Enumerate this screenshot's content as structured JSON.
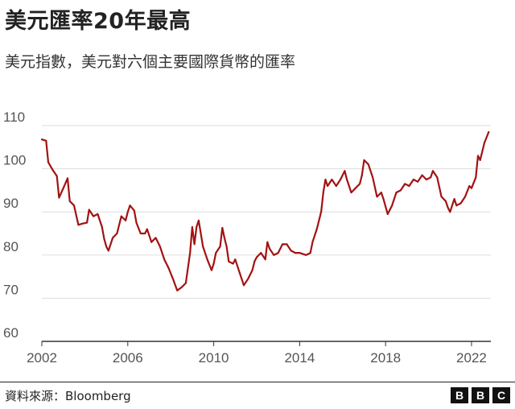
{
  "header": {
    "title": "美元匯率20年最高",
    "subtitle": "美元指數，美元對六個主要國際貨幣的匯率"
  },
  "footer": {
    "source": "資料來源：Bloomberg",
    "logo_letters": [
      "B",
      "B",
      "C"
    ]
  },
  "colors": {
    "line": "#a21212",
    "grid": "#dddddd",
    "axis": "#333333",
    "text": "#555555"
  },
  "chart_data": {
    "type": "line",
    "title": "美元匯率20年最高",
    "subtitle": "美元指數，美元對六個主要國際貨幣的匯率",
    "xlabel": "",
    "ylabel": "",
    "ylim": [
      60,
      110
    ],
    "xlim": [
      2002,
      2022.9
    ],
    "yticks": [
      60,
      70,
      80,
      90,
      100,
      110
    ],
    "xticks": [
      2002,
      2006,
      2010,
      2014,
      2018,
      2022
    ],
    "grid": true,
    "legend": "none",
    "series": [
      {
        "values": [
          [
            2002.0,
            106.8
          ],
          [
            2002.2,
            106.5
          ],
          [
            2002.3,
            101.5
          ],
          [
            2002.5,
            99.8
          ],
          [
            2002.7,
            98.3
          ],
          [
            2002.8,
            93.3
          ],
          [
            2003.0,
            95.5
          ],
          [
            2003.2,
            97.8
          ],
          [
            2003.3,
            92.5
          ],
          [
            2003.5,
            91.5
          ],
          [
            2003.7,
            87.0
          ],
          [
            2003.9,
            87.3
          ],
          [
            2004.1,
            87.5
          ],
          [
            2004.2,
            90.5
          ],
          [
            2004.4,
            89.0
          ],
          [
            2004.6,
            89.5
          ],
          [
            2004.8,
            86.5
          ],
          [
            2004.9,
            83.8
          ],
          [
            2005.0,
            82.0
          ],
          [
            2005.1,
            81.0
          ],
          [
            2005.3,
            84.0
          ],
          [
            2005.5,
            85.0
          ],
          [
            2005.7,
            89.0
          ],
          [
            2005.9,
            88.0
          ],
          [
            2006.0,
            90.0
          ],
          [
            2006.1,
            91.5
          ],
          [
            2006.3,
            90.3
          ],
          [
            2006.4,
            87.5
          ],
          [
            2006.6,
            85.0
          ],
          [
            2006.8,
            85.0
          ],
          [
            2006.9,
            86.0
          ],
          [
            2007.1,
            83.0
          ],
          [
            2007.3,
            84.0
          ],
          [
            2007.5,
            82.0
          ],
          [
            2007.7,
            79.0
          ],
          [
            2007.9,
            77.0
          ],
          [
            2008.1,
            74.5
          ],
          [
            2008.3,
            71.8
          ],
          [
            2008.5,
            72.5
          ],
          [
            2008.7,
            73.5
          ],
          [
            2008.9,
            80.5
          ],
          [
            2009.0,
            86.5
          ],
          [
            2009.1,
            82.5
          ],
          [
            2009.2,
            86.5
          ],
          [
            2009.3,
            88.0
          ],
          [
            2009.5,
            82.0
          ],
          [
            2009.7,
            79.0
          ],
          [
            2009.9,
            76.5
          ],
          [
            2010.0,
            78.0
          ],
          [
            2010.1,
            80.5
          ],
          [
            2010.3,
            82.0
          ],
          [
            2010.4,
            86.3
          ],
          [
            2010.5,
            84.0
          ],
          [
            2010.6,
            82.0
          ],
          [
            2010.7,
            78.5
          ],
          [
            2010.9,
            78.0
          ],
          [
            2011.0,
            79.0
          ],
          [
            2011.2,
            76.0
          ],
          [
            2011.4,
            73.0
          ],
          [
            2011.6,
            74.5
          ],
          [
            2011.8,
            76.5
          ],
          [
            2011.9,
            78.5
          ],
          [
            2012.0,
            79.5
          ],
          [
            2012.2,
            80.5
          ],
          [
            2012.4,
            79.0
          ],
          [
            2012.5,
            83.0
          ],
          [
            2012.6,
            81.5
          ],
          [
            2012.8,
            80.0
          ],
          [
            2013.0,
            80.5
          ],
          [
            2013.2,
            82.5
          ],
          [
            2013.4,
            82.5
          ],
          [
            2013.6,
            81.0
          ],
          [
            2013.8,
            80.5
          ],
          [
            2014.0,
            80.5
          ],
          [
            2014.3,
            80.0
          ],
          [
            2014.5,
            80.5
          ],
          [
            2014.6,
            83.0
          ],
          [
            2014.8,
            86.0
          ],
          [
            2015.0,
            90.0
          ],
          [
            2015.1,
            94.5
          ],
          [
            2015.2,
            97.5
          ],
          [
            2015.3,
            96.0
          ],
          [
            2015.5,
            97.5
          ],
          [
            2015.7,
            96.0
          ],
          [
            2015.9,
            97.5
          ],
          [
            2016.1,
            99.5
          ],
          [
            2016.2,
            97.5
          ],
          [
            2016.4,
            94.5
          ],
          [
            2016.6,
            95.5
          ],
          [
            2016.8,
            96.5
          ],
          [
            2016.9,
            98.5
          ],
          [
            2017.0,
            102.0
          ],
          [
            2017.2,
            101.0
          ],
          [
            2017.4,
            98.0
          ],
          [
            2017.6,
            93.5
          ],
          [
            2017.8,
            94.5
          ],
          [
            2017.9,
            93.0
          ],
          [
            2018.1,
            89.5
          ],
          [
            2018.3,
            91.5
          ],
          [
            2018.5,
            94.5
          ],
          [
            2018.7,
            95.0
          ],
          [
            2018.9,
            96.5
          ],
          [
            2019.1,
            96.0
          ],
          [
            2019.3,
            97.5
          ],
          [
            2019.5,
            97.0
          ],
          [
            2019.7,
            98.5
          ],
          [
            2019.9,
            97.5
          ],
          [
            2020.1,
            98.0
          ],
          [
            2020.2,
            99.5
          ],
          [
            2020.4,
            98.0
          ],
          [
            2020.6,
            93.5
          ],
          [
            2020.8,
            92.5
          ],
          [
            2020.9,
            91.0
          ],
          [
            2021.0,
            90.0
          ],
          [
            2021.2,
            93.0
          ],
          [
            2021.3,
            91.5
          ],
          [
            2021.5,
            92.0
          ],
          [
            2021.7,
            93.5
          ],
          [
            2021.9,
            96.0
          ],
          [
            2022.0,
            95.5
          ],
          [
            2022.2,
            98.0
          ],
          [
            2022.3,
            103.0
          ],
          [
            2022.4,
            102.0
          ],
          [
            2022.6,
            106.0
          ],
          [
            2022.8,
            108.5
          ]
        ]
      }
    ]
  }
}
